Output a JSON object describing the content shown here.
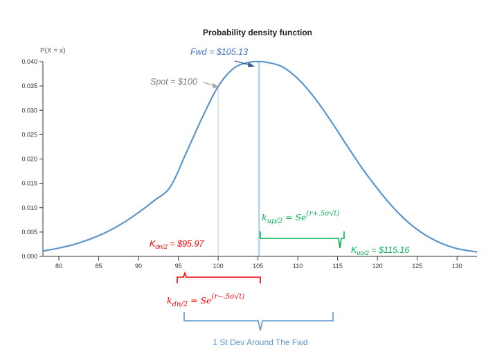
{
  "chart_data": {
    "type": "line",
    "title": "Probability density function",
    "ylabel": "P(X = x)",
    "xlabel": "",
    "xlim": [
      78,
      132.5
    ],
    "ylim": [
      0,
      0.04
    ],
    "x_ticks": [
      80,
      85,
      90,
      95,
      100,
      105,
      110,
      115,
      120,
      125,
      130
    ],
    "y_ticks": [
      "0.000",
      "0.005",
      "0.010",
      "0.015",
      "0.020",
      "0.025",
      "0.030",
      "0.035",
      "0.040"
    ],
    "series": [
      {
        "color": "#5b95cb",
        "x": [
          78,
          80,
          82,
          84,
          86,
          88,
          90,
          92,
          94,
          96,
          98,
          100,
          102,
          104,
          105.13,
          106,
          108,
          110,
          112,
          114,
          116,
          118,
          120,
          122,
          124,
          126,
          128,
          130,
          132.5
        ],
        "y": [
          0.0011,
          0.0017,
          0.0025,
          0.0036,
          0.005,
          0.0068,
          0.009,
          0.0115,
          0.0143,
          0.0213,
          0.0285,
          0.0349,
          0.0387,
          0.0399,
          0.04,
          0.0399,
          0.039,
          0.0365,
          0.0328,
          0.0282,
          0.0232,
          0.0183,
          0.0139,
          0.01,
          0.0068,
          0.0044,
          0.0027,
          0.0016,
          0.0009
        ]
      }
    ],
    "vlines": [
      {
        "x": 100,
        "color": "#c8c8c8"
      },
      {
        "x": 105.13,
        "color": "#5b95cb"
      }
    ]
  },
  "annotations": {
    "fwd": {
      "text": "Fwd = $105.13",
      "color": "#4472c4"
    },
    "spot": {
      "text": "Spot = $100",
      "color": "#7f7f7f"
    },
    "k_dn_value": {
      "prefix": "K",
      "sub": "dn/2",
      "value": " = $95.97",
      "color": "#ff0000"
    },
    "k_up_value": {
      "prefix": "K",
      "sub": "uo/2",
      "value": " = $115.16",
      "color": "#00b050"
    },
    "k_up_formula": {
      "k": "k",
      "sub": "up/2",
      "eq": " = Se",
      "exp": "(r+.5σ√t)",
      "color": "#00b050"
    },
    "k_dn_formula": {
      "k": "k",
      "sub": "dn/2",
      "eq": " = Se",
      "exp": "(r−.5σ√t)",
      "color": "#ff0000"
    },
    "footer": {
      "text": "1 St Dev Around The Fwd",
      "color": "#5b95cb"
    }
  }
}
